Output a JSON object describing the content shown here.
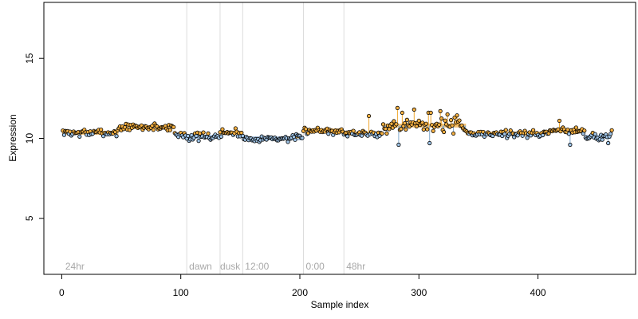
{
  "chart_data": {
    "type": "scatter",
    "xlabel": "Sample index",
    "ylabel": "Expression",
    "xlim": [
      -15,
      482
    ],
    "ylim": [
      1.5,
      18.5
    ],
    "x_ticks": [
      0,
      100,
      200,
      300,
      400
    ],
    "y_ticks": [
      5,
      10,
      15
    ],
    "grid": false,
    "region_boundaries": [
      105,
      133,
      152,
      203,
      237
    ],
    "region_labels": [
      {
        "x": 3,
        "text": "24hr"
      },
      {
        "x": 107,
        "text": "dawn"
      },
      {
        "x": 133,
        "text": "dusk"
      },
      {
        "x": 154,
        "text": "12:00"
      },
      {
        "x": 205,
        "text": "0:00"
      },
      {
        "x": 239,
        "text": "48hr"
      }
    ],
    "baseline": 10.3,
    "seed": 7,
    "segments": [
      {
        "x0": 0,
        "x1": 48,
        "level": 10.35
      },
      {
        "x0": 48,
        "x1": 95,
        "level": 10.7
      },
      {
        "x0": 95,
        "x1": 105,
        "level": 10.25
      },
      {
        "x0": 105,
        "x1": 133,
        "level": 10.1
      },
      {
        "x0": 133,
        "x1": 152,
        "level": 10.35
      },
      {
        "x0": 152,
        "x1": 203,
        "level": 10.0
      },
      {
        "x0": 203,
        "x1": 237,
        "level": 10.5
      },
      {
        "x0": 237,
        "x1": 270,
        "level": 10.3
      },
      {
        "x0": 270,
        "x1": 340,
        "level": 10.8
      },
      {
        "x0": 340,
        "x1": 410,
        "level": 10.3
      },
      {
        "x0": 410,
        "x1": 440,
        "level": 10.5
      },
      {
        "x0": 440,
        "x1": 462,
        "level": 10.1
      }
    ],
    "spikes": [
      {
        "x": 258,
        "y": 11.4
      },
      {
        "x": 282,
        "y": 11.9
      },
      {
        "x": 286,
        "y": 11.6
      },
      {
        "x": 296,
        "y": 11.8
      },
      {
        "x": 308,
        "y": 11.6
      },
      {
        "x": 310,
        "y": 11.6
      },
      {
        "x": 318,
        "y": 11.7
      },
      {
        "x": 324,
        "y": 11.5
      },
      {
        "x": 330,
        "y": 11.3
      },
      {
        "x": 283,
        "y": 9.6
      },
      {
        "x": 309,
        "y": 9.7
      },
      {
        "x": 418,
        "y": 11.1
      },
      {
        "x": 427,
        "y": 9.6
      },
      {
        "x": 459,
        "y": 9.7
      }
    ],
    "n_points": 462,
    "colors": {
      "point_high": "#f5b041",
      "point_low": "#9ec3e6",
      "stem_high": "#f0a830",
      "stem_low": "#7fa8cc",
      "bar_high": "#f5c170",
      "bar_low": "#9db9d8",
      "region_line": "#dcdcdc"
    }
  }
}
